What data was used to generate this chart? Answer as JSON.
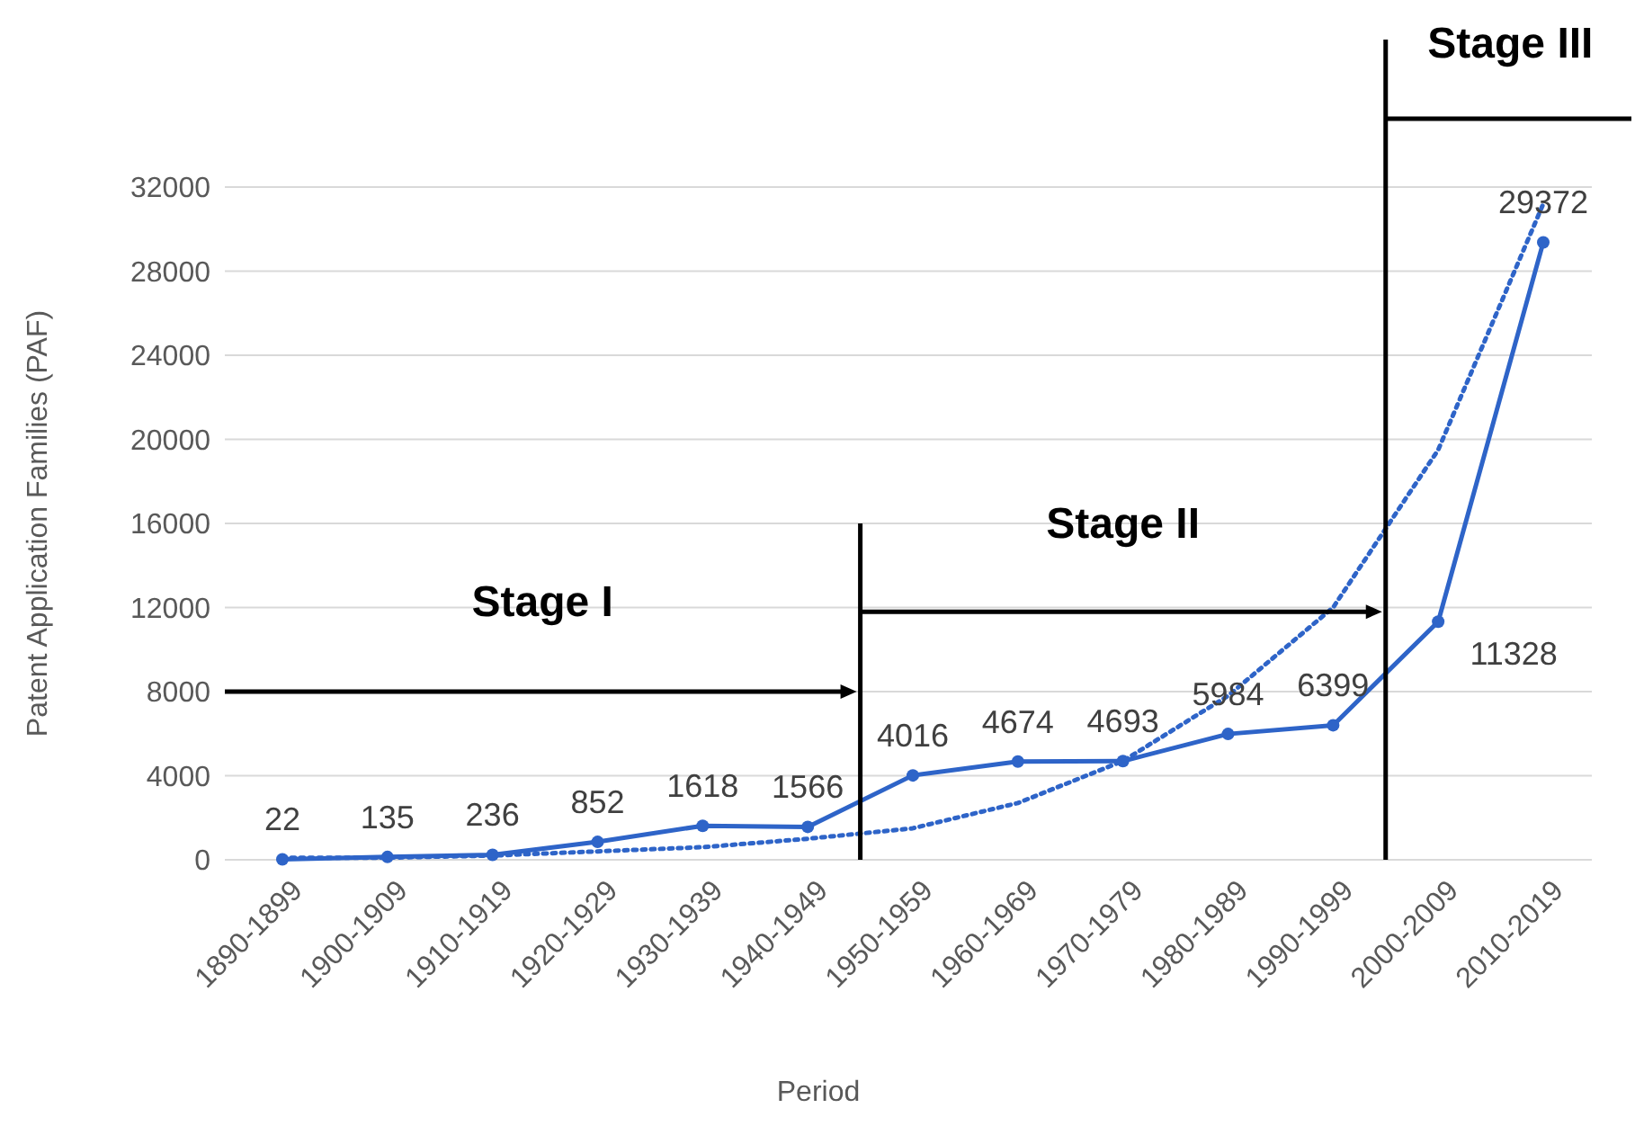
{
  "chart_data": {
    "type": "line",
    "xlabel": "Period",
    "ylabel": "Patent Application Families (PAF)",
    "categories": [
      "1890-1899",
      "1900-1909",
      "1910-1919",
      "1920-1929",
      "1930-1939",
      "1940-1949",
      "1950-1959",
      "1960-1969",
      "1970-1979",
      "1980-1989",
      "1990-1999",
      "2000-2009",
      "2010-2019"
    ],
    "series": [
      {
        "color": "#2e64c8",
        "marker": "circle",
        "line_style": "solid",
        "values": [
          22,
          135,
          236,
          852,
          1618,
          1566,
          4016,
          4674,
          4693,
          5984,
          6399,
          11328,
          29372
        ],
        "value_labels": [
          "22",
          "135",
          "236",
          "852",
          "1618",
          "1566",
          "4016",
          "4674",
          "4693",
          "5984",
          "6399",
          "11328",
          "29372"
        ]
      },
      {
        "type": "line",
        "color": "#2e64c8",
        "marker": "none",
        "line_style": "dotted",
        "values": [
          100,
          100,
          200,
          400,
          600,
          1000,
          1500,
          2700,
          4700,
          7800,
          12000,
          19500,
          31200
        ]
      }
    ],
    "ylim": [
      0,
      32000
    ],
    "yticks": [
      0,
      4000,
      8000,
      12000,
      16000,
      20000,
      24000,
      28000,
      32000
    ],
    "grid": "y",
    "ref_lines": [
      {
        "axis": "x",
        "value": "1950-1959",
        "color": "#000000"
      },
      {
        "axis": "x",
        "value": "2000-2009",
        "color": "#000000"
      }
    ],
    "annotations": [
      "Stage I",
      "Stage II",
      "Stage III"
    ]
  }
}
